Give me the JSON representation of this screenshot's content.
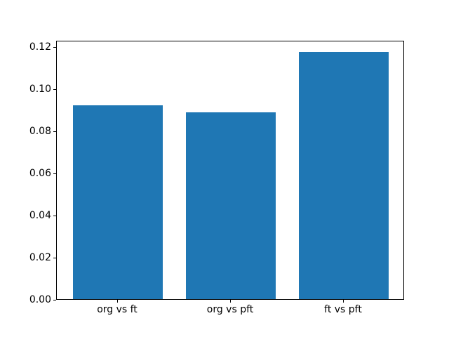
{
  "chart_data": {
    "type": "bar",
    "title": "",
    "xlabel": "",
    "ylabel": "",
    "categories": [
      "org vs ft",
      "org vs pft",
      "ft vs pft"
    ],
    "values": [
      0.092,
      0.0887,
      0.1173
    ],
    "bar_color": "#1f77b4",
    "ylim": [
      0,
      0.1232
    ],
    "yticks": [
      0.0,
      0.02,
      0.04,
      0.06,
      0.08,
      0.1,
      0.12
    ],
    "ytick_labels": [
      "0.00",
      "0.02",
      "0.04",
      "0.06",
      "0.08",
      "0.10",
      "0.12"
    ],
    "grid": false,
    "legend": null,
    "bar_width_fraction": 0.8,
    "axis_color": "#000000",
    "background_color": "#ffffff"
  }
}
